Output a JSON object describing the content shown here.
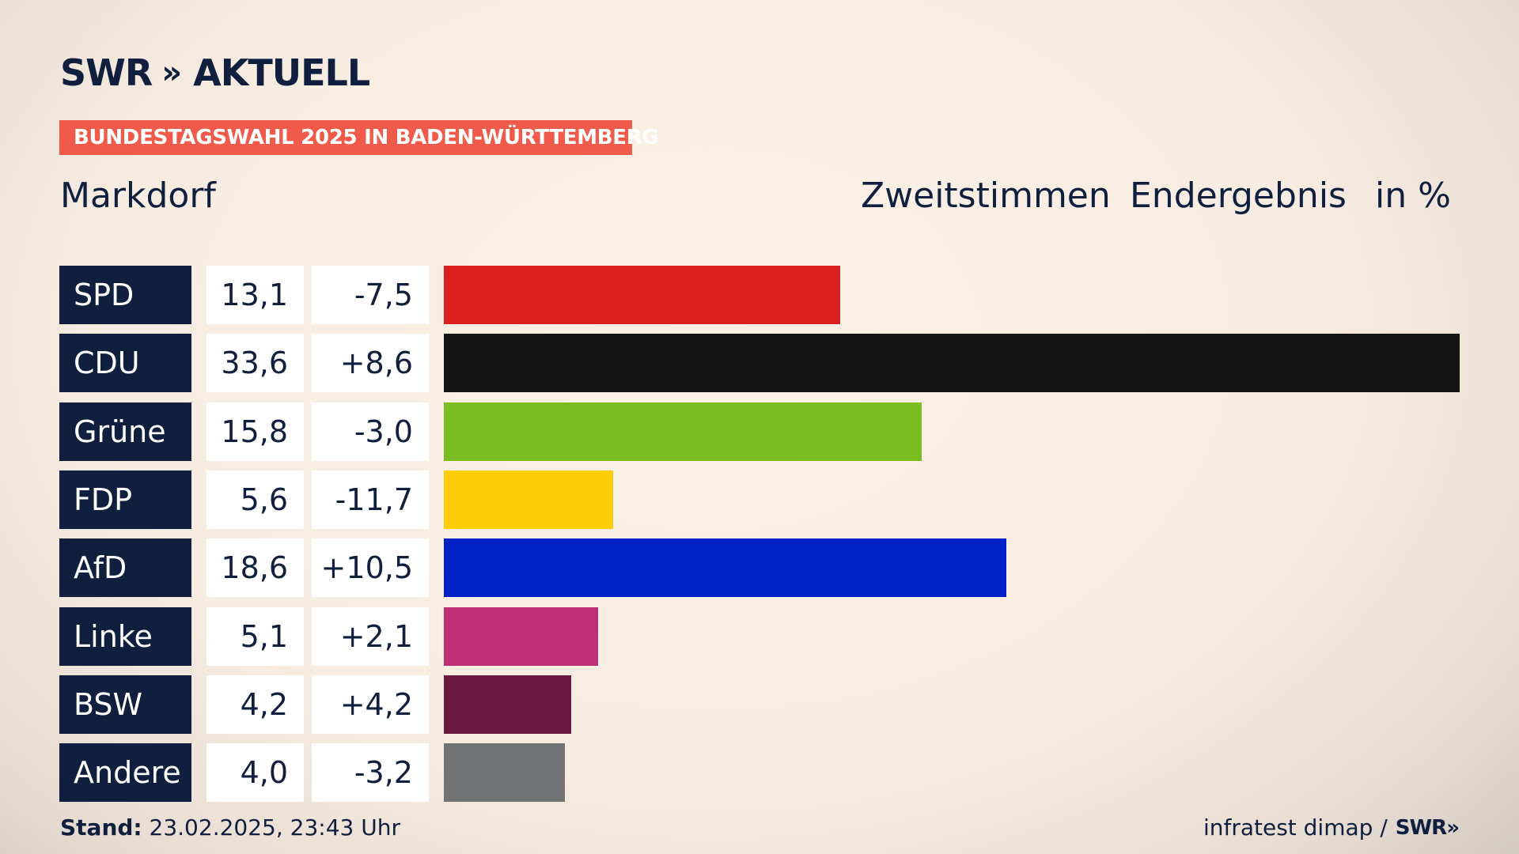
{
  "brand": {
    "name": "SWR",
    "chevrons": "»",
    "product": "AKTUELL"
  },
  "kicker": "BUNDESTAGSWAHL 2025 IN BADEN-WÜRTTEMBERG",
  "region": "Markdorf",
  "headers": {
    "vote_type": "Zweitstimmen",
    "status": "Endergebnis",
    "unit": "in %"
  },
  "colors": {
    "navy": "#0f1f3d",
    "kicker": "#f05a4a"
  },
  "chart_data": {
    "type": "bar",
    "orientation": "horizontal",
    "unit": "%",
    "categories": [
      "SPD",
      "CDU",
      "Grüne",
      "FDP",
      "AfD",
      "Linke",
      "BSW",
      "Andere"
    ],
    "values": [
      13.1,
      33.6,
      15.8,
      5.6,
      18.6,
      5.1,
      4.2,
      4.0
    ],
    "value_labels": [
      "13,1",
      "33,6",
      "15,8",
      "5,6",
      "18,6",
      "5,1",
      "4,2",
      "4,0"
    ],
    "change_labels": [
      "-7,5",
      "+8,6",
      "-3,0",
      "-11,7",
      "+10,5",
      "+2,1",
      "+4,2",
      "-3,2"
    ],
    "changes": [
      -7.5,
      8.6,
      -3.0,
      -11.7,
      10.5,
      2.1,
      4.2,
      -3.2
    ],
    "colors": [
      "#d91f1f",
      "#141414",
      "#7bbd1f",
      "#ffcc0a",
      "#0021c7",
      "#bd3075",
      "#6a1a3e",
      "#717273"
    ],
    "xlim": [
      0,
      33.6
    ]
  },
  "footer": {
    "stand_label": "Stand:",
    "stand_value": "23.02.2025, 23:43 Uhr",
    "source": "infratest dimap /",
    "source_brand": "SWR"
  }
}
